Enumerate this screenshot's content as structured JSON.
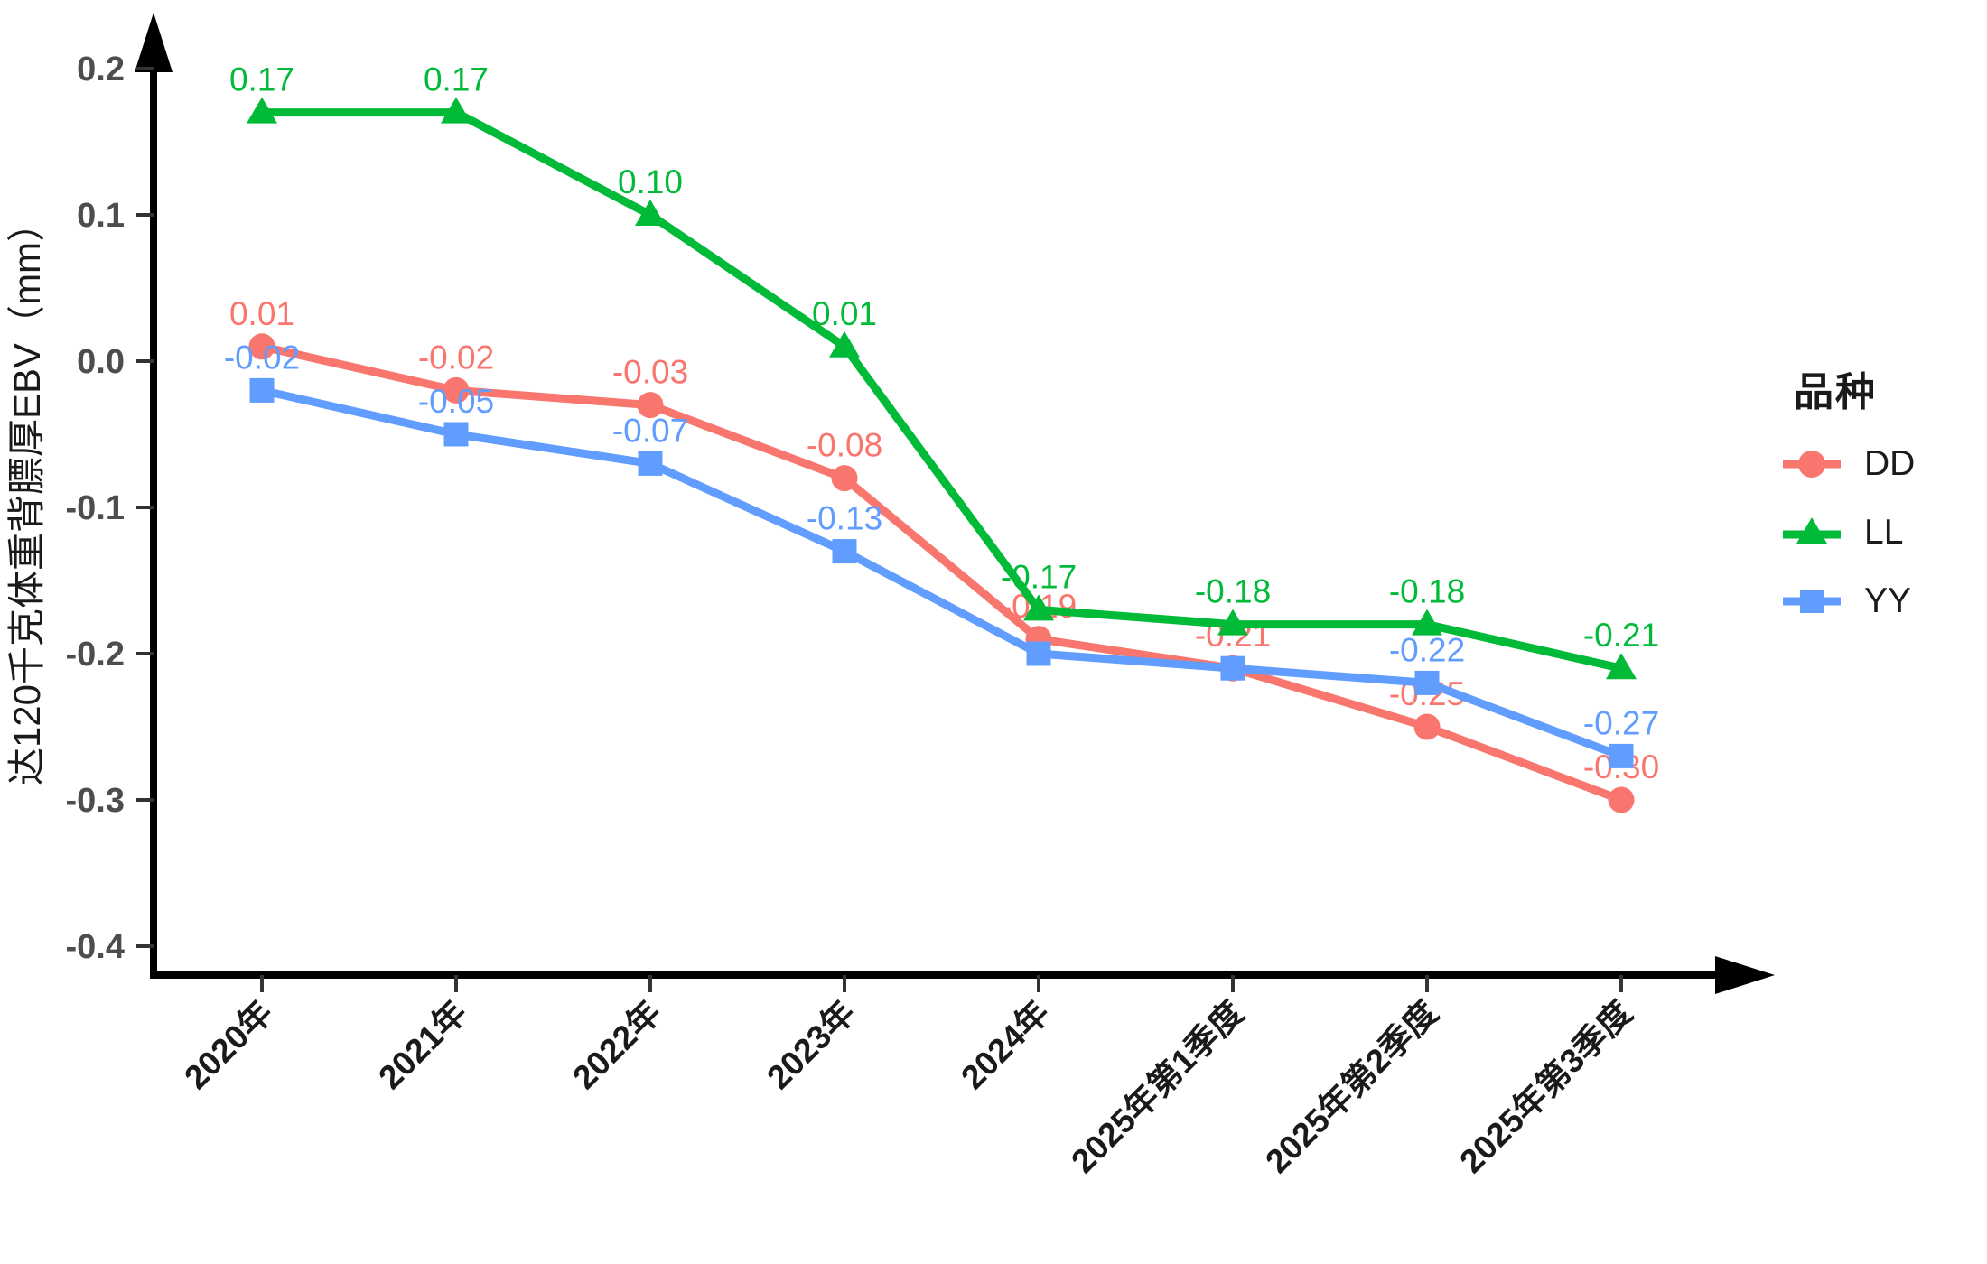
{
  "chart_data": {
    "type": "line",
    "title": "",
    "ylabel": "达120千克体重背膘厚EBV（mm）",
    "xlabel": "",
    "categories": [
      "2020年",
      "2021年",
      "2022年",
      "2023年",
      "2024年",
      "2025年第1季度",
      "2025年第2季度",
      "2025年第3季度"
    ],
    "x_tick_rotation_deg": 45,
    "y_ticks": [
      0.2,
      0.1,
      0.0,
      -0.1,
      -0.2,
      -0.3,
      -0.4
    ],
    "y_tick_labels": [
      "0.2",
      "0.1",
      "0.0",
      "-0.1",
      "-0.2",
      "-0.3",
      "-0.4"
    ],
    "ylim": [
      -0.45,
      0.24
    ],
    "grid": false,
    "legend_position": "right",
    "series": [
      {
        "name": "DD",
        "color": "#F8766D",
        "marker": "circle",
        "values": [
          0.01,
          -0.02,
          -0.03,
          -0.08,
          -0.19,
          -0.21,
          -0.25,
          -0.3
        ],
        "labels": [
          "0.01",
          "-0.02",
          "-0.03",
          "-0.08",
          "-0.19",
          "-0.21",
          "-0.25",
          "-0.30"
        ]
      },
      {
        "name": "LL",
        "color": "#00BA38",
        "marker": "triangle",
        "values": [
          0.17,
          0.17,
          0.1,
          0.01,
          -0.17,
          -0.18,
          -0.18,
          -0.21
        ],
        "labels": [
          "0.17",
          "0.17",
          "0.10",
          "0.01",
          "-0.17",
          "-0.18",
          "-0.18",
          "-0.21"
        ]
      },
      {
        "name": "YY",
        "color": "#619CFF",
        "marker": "square",
        "values": [
          -0.02,
          -0.05,
          -0.07,
          -0.13,
          -0.2,
          -0.21,
          -0.22,
          -0.27
        ],
        "labels": [
          "-0.02",
          "-0.05",
          "-0.07",
          "-0.13",
          "",
          "",
          "-0.22",
          "-0.27"
        ]
      }
    ]
  },
  "legend": {
    "title": "品种",
    "entries": [
      {
        "label": "DD"
      },
      {
        "label": "LL"
      },
      {
        "label": "YY"
      }
    ]
  },
  "style": {
    "axis_color": "#000000",
    "tick_color": "#333333",
    "y_tick_label_color": "#4d4d4d",
    "x_tick_label_color": "#1a1a1a"
  }
}
